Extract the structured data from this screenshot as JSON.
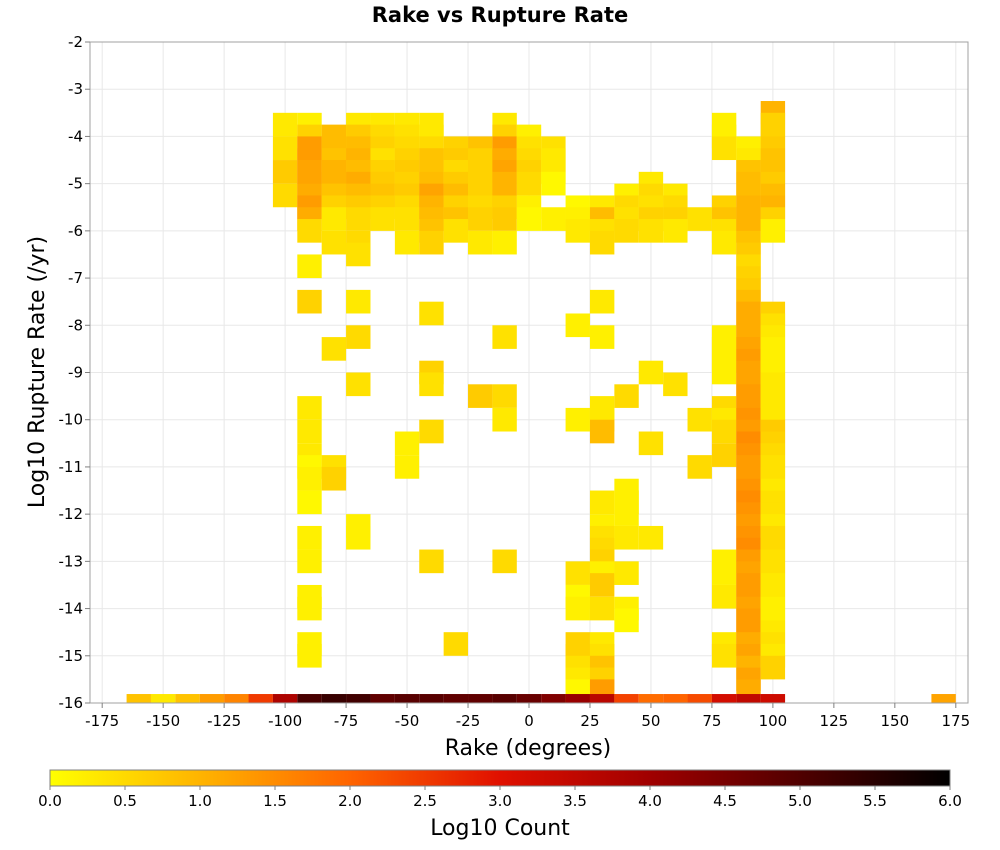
{
  "chart_data": {
    "type": "heatmap",
    "title": "Rake vs Rupture Rate",
    "xlabel": "Rake (degrees)",
    "ylabel": "Log10 Rupture Rate (/yr)",
    "xlim": [
      -180,
      180
    ],
    "ylim": [
      -16,
      -2
    ],
    "bin_width_x": 10,
    "bin_height_y": 0.5,
    "grid": true,
    "x_ticks": [
      "-175",
      "-150",
      "-125",
      "-100",
      "-75",
      "-50",
      "-25",
      "0",
      "25",
      "50",
      "75",
      "100",
      "125",
      "150",
      "175"
    ],
    "y_ticks": [
      "-2",
      "-3",
      "-4",
      "-5",
      "-6",
      "-7",
      "-8",
      "-9",
      "-10",
      "-11",
      "-12",
      "-13",
      "-14",
      "-15",
      "-16"
    ],
    "colorbar": {
      "label": "Log10 Count",
      "min": 0,
      "max": 6,
      "ticks": [
        "0.0",
        "0.5",
        "1.0",
        "1.5",
        "2.0",
        "2.5",
        "3.0",
        "3.5",
        "4.0",
        "4.5",
        "5.0",
        "5.5",
        "6.0"
      ],
      "colors": [
        "#ffff00",
        "#ffb400",
        "#ff6400",
        "#e01000",
        "#a00000",
        "#500000",
        "#000000"
      ]
    },
    "cells": [
      [
        -100,
        -3.75,
        0.3
      ],
      [
        -100,
        -4.25,
        0.4
      ],
      [
        -100,
        -4.75,
        0.7
      ],
      [
        -100,
        -5.25,
        0.5
      ],
      [
        -90,
        -3.75,
        0.2
      ],
      [
        -90,
        -4.0,
        0.6
      ],
      [
        -90,
        -4.25,
        1.3
      ],
      [
        -90,
        -4.5,
        1.3
      ],
      [
        -90,
        -4.75,
        1.2
      ],
      [
        -90,
        -5.0,
        1.2
      ],
      [
        -90,
        -5.25,
        1.1
      ],
      [
        -90,
        -5.5,
        1.3
      ],
      [
        -90,
        -5.75,
        1.1
      ],
      [
        -90,
        -6.0,
        0.5
      ],
      [
        -90,
        -6.75,
        0.2
      ],
      [
        -90,
        -7.5,
        0.6
      ],
      [
        -90,
        -9.75,
        0.3
      ],
      [
        -90,
        -10.25,
        0.3
      ],
      [
        -90,
        -10.75,
        0.3
      ],
      [
        -90,
        -11.0,
        0.1
      ],
      [
        -90,
        -11.25,
        0.2
      ],
      [
        -90,
        -11.75,
        0.1
      ],
      [
        -90,
        -12.5,
        0.2
      ],
      [
        -90,
        -13.0,
        0.2
      ],
      [
        -90,
        -13.75,
        0.2
      ],
      [
        -90,
        -14.0,
        0.2
      ],
      [
        -90,
        -14.75,
        0.2
      ],
      [
        -90,
        -15.0,
        0.2
      ],
      [
        -80,
        -4.0,
        0.9
      ],
      [
        -80,
        -4.25,
        0.9
      ],
      [
        -80,
        -4.5,
        0.8
      ],
      [
        -80,
        -4.75,
        1.0
      ],
      [
        -80,
        -5.0,
        1.0
      ],
      [
        -80,
        -5.25,
        0.8
      ],
      [
        -80,
        -5.5,
        0.6
      ],
      [
        -80,
        -5.75,
        0.3
      ],
      [
        -80,
        -6.25,
        0.4
      ],
      [
        -80,
        -8.5,
        0.4
      ],
      [
        -80,
        -11.0,
        0.4
      ],
      [
        -80,
        -11.25,
        0.6
      ],
      [
        -70,
        -3.75,
        0.3
      ],
      [
        -70,
        -4.0,
        0.7
      ],
      [
        -70,
        -4.25,
        0.9
      ],
      [
        -70,
        -4.5,
        1.0
      ],
      [
        -70,
        -4.75,
        0.9
      ],
      [
        -70,
        -5.0,
        1.1
      ],
      [
        -70,
        -5.25,
        0.9
      ],
      [
        -70,
        -5.5,
        0.7
      ],
      [
        -70,
        -5.75,
        0.5
      ],
      [
        -70,
        -6.25,
        0.5
      ],
      [
        -70,
        -6.5,
        0.4
      ],
      [
        -70,
        -7.5,
        0.3
      ],
      [
        -70,
        -8.25,
        0.5
      ],
      [
        -70,
        -9.25,
        0.4
      ],
      [
        -70,
        -12.25,
        0.2
      ],
      [
        -70,
        -12.5,
        0.2
      ],
      [
        -60,
        -3.75,
        0.3
      ],
      [
        -60,
        -4.0,
        0.5
      ],
      [
        -60,
        -4.25,
        0.6
      ],
      [
        -60,
        -4.5,
        0.4
      ],
      [
        -60,
        -4.75,
        0.6
      ],
      [
        -60,
        -5.0,
        0.7
      ],
      [
        -60,
        -5.25,
        0.8
      ],
      [
        -60,
        -5.5,
        0.6
      ],
      [
        -60,
        -5.75,
        0.4
      ],
      [
        -50,
        -3.75,
        0.3
      ],
      [
        -50,
        -4.0,
        0.4
      ],
      [
        -50,
        -4.25,
        0.5
      ],
      [
        -50,
        -4.5,
        0.6
      ],
      [
        -50,
        -4.75,
        0.7
      ],
      [
        -50,
        -5.0,
        0.6
      ],
      [
        -50,
        -5.25,
        0.7
      ],
      [
        -50,
        -5.5,
        0.5
      ],
      [
        -50,
        -5.75,
        0.4
      ],
      [
        -50,
        -6.25,
        0.3
      ],
      [
        -50,
        -10.5,
        0.2
      ],
      [
        -50,
        -11.0,
        0.2
      ],
      [
        -40,
        -3.75,
        0.3
      ],
      [
        -40,
        -4.0,
        0.3
      ],
      [
        -40,
        -4.25,
        0.5
      ],
      [
        -40,
        -4.5,
        0.8
      ],
      [
        -40,
        -4.75,
        0.8
      ],
      [
        -40,
        -5.0,
        0.9
      ],
      [
        -40,
        -5.25,
        1.2
      ],
      [
        -40,
        -5.5,
        1.0
      ],
      [
        -40,
        -5.75,
        0.9
      ],
      [
        -40,
        -6.0,
        0.8
      ],
      [
        -40,
        -6.25,
        0.6
      ],
      [
        -40,
        -7.75,
        0.4
      ],
      [
        -40,
        -9.0,
        0.6
      ],
      [
        -40,
        -9.25,
        0.4
      ],
      [
        -40,
        -10.25,
        0.5
      ],
      [
        -40,
        -13.0,
        0.5
      ],
      [
        -30,
        -4.25,
        0.6
      ],
      [
        -30,
        -4.5,
        0.7
      ],
      [
        -30,
        -4.75,
        0.5
      ],
      [
        -30,
        -5.0,
        0.7
      ],
      [
        -30,
        -5.25,
        0.9
      ],
      [
        -30,
        -5.5,
        0.6
      ],
      [
        -30,
        -5.75,
        0.8
      ],
      [
        -30,
        -6.0,
        0.4
      ],
      [
        -30,
        -14.75,
        0.5
      ],
      [
        -20,
        -4.25,
        0.8
      ],
      [
        -20,
        -4.5,
        0.6
      ],
      [
        -20,
        -4.75,
        0.6
      ],
      [
        -20,
        -5.0,
        0.6
      ],
      [
        -20,
        -5.25,
        0.6
      ],
      [
        -20,
        -5.5,
        0.5
      ],
      [
        -20,
        -5.75,
        0.6
      ],
      [
        -20,
        -6.25,
        0.3
      ],
      [
        -20,
        -9.5,
        0.7
      ],
      [
        -10,
        -3.75,
        0.3
      ],
      [
        -10,
        -4.0,
        0.6
      ],
      [
        -10,
        -4.25,
        1.3
      ],
      [
        -10,
        -4.5,
        1.1
      ],
      [
        -10,
        -4.75,
        1.2
      ],
      [
        -10,
        -5.0,
        1.0
      ],
      [
        -10,
        -5.25,
        1.0
      ],
      [
        -10,
        -5.5,
        0.6
      ],
      [
        -10,
        -5.75,
        0.7
      ],
      [
        -10,
        -6.25,
        0.2
      ],
      [
        -10,
        -8.25,
        0.4
      ],
      [
        -10,
        -9.5,
        0.5
      ],
      [
        -10,
        -10.0,
        0.3
      ],
      [
        -10,
        -13.0,
        0.5
      ],
      [
        0,
        -4.0,
        0.2
      ],
      [
        0,
        -4.25,
        0.4
      ],
      [
        0,
        -4.5,
        0.5
      ],
      [
        0,
        -4.75,
        0.6
      ],
      [
        0,
        -5.0,
        0.5
      ],
      [
        0,
        -5.5,
        0.2
      ],
      [
        0,
        -5.75,
        0.1
      ],
      [
        10,
        -4.25,
        0.4
      ],
      [
        10,
        -4.5,
        0.3
      ],
      [
        10,
        -4.75,
        0.3
      ],
      [
        10,
        -5.0,
        0.1
      ],
      [
        10,
        -5.75,
        0.2
      ],
      [
        20,
        -5.5,
        0.1
      ],
      [
        20,
        -5.75,
        0.2
      ],
      [
        20,
        -6.0,
        0.3
      ],
      [
        20,
        -8.0,
        0.2
      ],
      [
        20,
        -10.0,
        0.2
      ],
      [
        20,
        -13.25,
        0.4
      ],
      [
        20,
        -13.75,
        0.1
      ],
      [
        20,
        -14.0,
        0.2
      ],
      [
        20,
        -14.75,
        0.6
      ],
      [
        20,
        -15.0,
        0.6
      ],
      [
        20,
        -15.25,
        0.4
      ],
      [
        20,
        -15.5,
        0.3
      ],
      [
        20,
        -15.75,
        0.1
      ],
      [
        30,
        -5.5,
        0.3
      ],
      [
        30,
        -5.75,
        0.9
      ],
      [
        30,
        -6.0,
        0.4
      ],
      [
        30,
        -6.25,
        0.5
      ],
      [
        30,
        -7.5,
        0.3
      ],
      [
        30,
        -8.25,
        0.2
      ],
      [
        30,
        -9.75,
        0.3
      ],
      [
        30,
        -10.0,
        0.3
      ],
      [
        30,
        -10.25,
        0.9
      ],
      [
        30,
        -11.75,
        0.3
      ],
      [
        30,
        -12.25,
        0.2
      ],
      [
        30,
        -12.5,
        0.4
      ],
      [
        30,
        -12.75,
        0.5
      ],
      [
        30,
        -13.0,
        0.6
      ],
      [
        30,
        -13.25,
        0.2
      ],
      [
        30,
        -13.5,
        0.7
      ],
      [
        30,
        -14.0,
        0.4
      ],
      [
        30,
        -14.75,
        0.3
      ],
      [
        30,
        -15.0,
        0.4
      ],
      [
        30,
        -15.25,
        0.8
      ],
      [
        30,
        -15.5,
        0.6
      ],
      [
        30,
        -15.75,
        1.3
      ],
      [
        40,
        -5.25,
        0.2
      ],
      [
        40,
        -5.5,
        0.5
      ],
      [
        40,
        -5.75,
        0.4
      ],
      [
        40,
        -6.0,
        0.5
      ],
      [
        40,
        -9.5,
        0.5
      ],
      [
        40,
        -11.5,
        0.2
      ],
      [
        40,
        -11.75,
        0.2
      ],
      [
        40,
        -12.0,
        0.2
      ],
      [
        40,
        -12.5,
        0.3
      ],
      [
        40,
        -13.25,
        0.3
      ],
      [
        40,
        -14.0,
        0.2
      ],
      [
        40,
        -14.25,
        0.1
      ],
      [
        50,
        -5.0,
        0.3
      ],
      [
        50,
        -5.25,
        0.5
      ],
      [
        50,
        -5.5,
        0.4
      ],
      [
        50,
        -5.75,
        0.6
      ],
      [
        50,
        -6.0,
        0.4
      ],
      [
        50,
        -9.0,
        0.3
      ],
      [
        50,
        -10.5,
        0.4
      ],
      [
        50,
        -12.5,
        0.3
      ],
      [
        60,
        -5.25,
        0.3
      ],
      [
        60,
        -5.5,
        0.5
      ],
      [
        60,
        -5.75,
        0.6
      ],
      [
        60,
        -6.0,
        0.3
      ],
      [
        60,
        -9.25,
        0.4
      ],
      [
        70,
        -5.75,
        0.4
      ],
      [
        70,
        -10.0,
        0.4
      ],
      [
        70,
        -11.0,
        0.5
      ],
      [
        80,
        -3.75,
        0.2
      ],
      [
        80,
        -4.0,
        0.2
      ],
      [
        80,
        -4.25,
        0.4
      ],
      [
        80,
        -5.5,
        0.6
      ],
      [
        80,
        -5.75,
        0.8
      ],
      [
        80,
        -6.0,
        0.4
      ],
      [
        80,
        -6.25,
        0.3
      ],
      [
        80,
        -8.25,
        0.2
      ],
      [
        80,
        -8.5,
        0.2
      ],
      [
        80,
        -8.75,
        0.2
      ],
      [
        80,
        -9.0,
        0.2
      ],
      [
        80,
        -9.75,
        0.5
      ],
      [
        80,
        -10.0,
        0.3
      ],
      [
        80,
        -10.25,
        0.5
      ],
      [
        80,
        -10.75,
        0.6
      ],
      [
        80,
        -13.0,
        0.2
      ],
      [
        80,
        -13.25,
        0.2
      ],
      [
        80,
        -13.75,
        0.3
      ],
      [
        80,
        -14.75,
        0.3
      ],
      [
        80,
        -15.0,
        0.4
      ],
      [
        90,
        -4.25,
        0.2
      ],
      [
        90,
        -4.5,
        0.3
      ],
      [
        90,
        -4.75,
        0.8
      ],
      [
        90,
        -5.0,
        0.9
      ],
      [
        90,
        -5.25,
        0.9
      ],
      [
        90,
        -5.5,
        1.0
      ],
      [
        90,
        -5.75,
        1.0
      ],
      [
        90,
        -6.0,
        1.0
      ],
      [
        90,
        -6.25,
        0.8
      ],
      [
        90,
        -6.5,
        0.7
      ],
      [
        90,
        -6.75,
        0.5
      ],
      [
        90,
        -7.0,
        0.6
      ],
      [
        90,
        -7.25,
        0.7
      ],
      [
        90,
        -7.5,
        0.9
      ],
      [
        90,
        -7.75,
        1.1
      ],
      [
        90,
        -8.0,
        1.1
      ],
      [
        90,
        -8.25,
        1.1
      ],
      [
        90,
        -8.5,
        1.2
      ],
      [
        90,
        -8.75,
        1.3
      ],
      [
        90,
        -9.0,
        1.2
      ],
      [
        90,
        -9.25,
        1.2
      ],
      [
        90,
        -9.5,
        1.3
      ],
      [
        90,
        -9.75,
        1.3
      ],
      [
        90,
        -10.0,
        1.4
      ],
      [
        90,
        -10.25,
        1.3
      ],
      [
        90,
        -10.5,
        1.5
      ],
      [
        90,
        -10.75,
        1.4
      ],
      [
        90,
        -11.0,
        1.3
      ],
      [
        90,
        -11.25,
        1.3
      ],
      [
        90,
        -11.5,
        1.4
      ],
      [
        90,
        -11.75,
        1.5
      ],
      [
        90,
        -12.0,
        1.4
      ],
      [
        90,
        -12.25,
        1.3
      ],
      [
        90,
        -12.5,
        1.4
      ],
      [
        90,
        -12.75,
        1.5
      ],
      [
        90,
        -13.0,
        1.3
      ],
      [
        90,
        -13.25,
        1.2
      ],
      [
        90,
        -13.5,
        1.3
      ],
      [
        90,
        -13.75,
        1.3
      ],
      [
        90,
        -14.0,
        1.2
      ],
      [
        90,
        -14.25,
        1.3
      ],
      [
        90,
        -14.5,
        1.3
      ],
      [
        90,
        -14.75,
        1.1
      ],
      [
        90,
        -15.0,
        1.2
      ],
      [
        90,
        -15.25,
        1.0
      ],
      [
        90,
        -15.5,
        1.2
      ],
      [
        90,
        -15.75,
        1.1
      ],
      [
        100,
        -3.5,
        1.0
      ],
      [
        100,
        -3.75,
        0.6
      ],
      [
        100,
        -4.0,
        0.6
      ],
      [
        100,
        -4.25,
        0.7
      ],
      [
        100,
        -4.5,
        0.8
      ],
      [
        100,
        -4.75,
        0.8
      ],
      [
        100,
        -5.0,
        0.7
      ],
      [
        100,
        -5.25,
        0.9
      ],
      [
        100,
        -5.5,
        1.0
      ],
      [
        100,
        -5.75,
        0.6
      ],
      [
        100,
        -6.0,
        0.2
      ],
      [
        100,
        -7.75,
        0.6
      ],
      [
        100,
        -8.0,
        0.4
      ],
      [
        100,
        -8.25,
        0.3
      ],
      [
        100,
        -8.5,
        0.2
      ],
      [
        100,
        -8.75,
        0.2
      ],
      [
        100,
        -9.0,
        0.2
      ],
      [
        100,
        -9.25,
        0.3
      ],
      [
        100,
        -9.5,
        0.3
      ],
      [
        100,
        -9.75,
        0.3
      ],
      [
        100,
        -10.0,
        0.3
      ],
      [
        100,
        -10.25,
        0.7
      ],
      [
        100,
        -10.5,
        0.6
      ],
      [
        100,
        -10.75,
        0.5
      ],
      [
        100,
        -11.0,
        0.4
      ],
      [
        100,
        -11.25,
        0.4
      ],
      [
        100,
        -11.5,
        0.3
      ],
      [
        100,
        -11.75,
        0.4
      ],
      [
        100,
        -12.0,
        0.4
      ],
      [
        100,
        -12.25,
        0.3
      ],
      [
        100,
        -12.5,
        0.5
      ],
      [
        100,
        -12.75,
        0.5
      ],
      [
        100,
        -13.0,
        0.4
      ],
      [
        100,
        -13.25,
        0.4
      ],
      [
        100,
        -13.5,
        0.3
      ],
      [
        100,
        -13.75,
        0.3
      ],
      [
        100,
        -14.0,
        0.2
      ],
      [
        100,
        -14.25,
        0.2
      ],
      [
        100,
        -14.5,
        0.3
      ],
      [
        100,
        -14.75,
        0.4
      ],
      [
        100,
        -15.0,
        0.3
      ],
      [
        100,
        -15.25,
        0.6
      ]
    ],
    "bottom_row_y": -15.9,
    "bottom_row_height": 0.18,
    "bottom_row": [
      [
        -160,
        0.8
      ],
      [
        -150,
        0.3
      ],
      [
        -140,
        0.8
      ],
      [
        -130,
        1.3
      ],
      [
        -120,
        1.6
      ],
      [
        -110,
        2.5
      ],
      [
        -100,
        3.8
      ],
      [
        -90,
        5.1
      ],
      [
        -80,
        5.3
      ],
      [
        -70,
        5.2
      ],
      [
        -60,
        4.8
      ],
      [
        -50,
        4.9
      ],
      [
        -40,
        4.9
      ],
      [
        -30,
        4.8
      ],
      [
        -20,
        4.8
      ],
      [
        -10,
        4.9
      ],
      [
        0,
        4.7
      ],
      [
        10,
        4.4
      ],
      [
        20,
        4.1
      ],
      [
        30,
        3.6
      ],
      [
        40,
        2.4
      ],
      [
        50,
        1.9
      ],
      [
        60,
        2.0
      ],
      [
        70,
        2.3
      ],
      [
        80,
        3.2
      ],
      [
        90,
        3.5
      ],
      [
        100,
        3.3
      ],
      [
        170,
        1.2
      ]
    ]
  }
}
